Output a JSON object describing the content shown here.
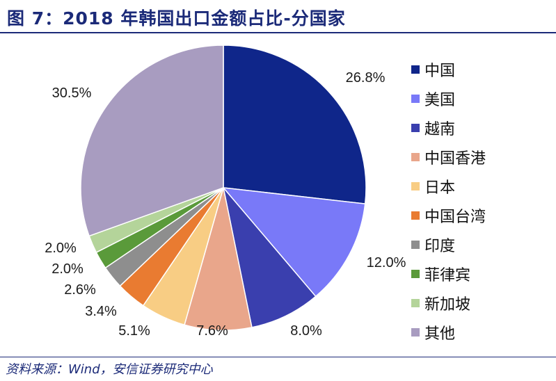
{
  "title": "图 7：2018 年韩国出口金额占比-分国家",
  "source": "资料来源：Wind，安信证券研究中心",
  "chart_data": {
    "type": "pie",
    "title": "图 7：2018 年韩国出口金额占比-分国家",
    "legend_position": "right",
    "slices": [
      {
        "label": "中国",
        "value": 26.8,
        "display": "26.8%",
        "color": "#0f268a"
      },
      {
        "label": "美国",
        "value": 12.0,
        "display": "12.0%",
        "color": "#7979f8"
      },
      {
        "label": "越南",
        "value": 8.0,
        "display": "8.0%",
        "color": "#3a3fae"
      },
      {
        "label": "中国香港",
        "value": 7.6,
        "display": "7.6%",
        "color": "#e9a68b"
      },
      {
        "label": "日本",
        "value": 5.1,
        "display": "5.1%",
        "color": "#f8cd84"
      },
      {
        "label": "中国台湾",
        "value": 3.4,
        "display": "3.4%",
        "color": "#e97b31"
      },
      {
        "label": "印度",
        "value": 2.6,
        "display": "2.6%",
        "color": "#8e8e8e"
      },
      {
        "label": "菲律宾",
        "value": 2.0,
        "display": "2.0%",
        "color": "#5a9a3a"
      },
      {
        "label": "新加坡",
        "value": 2.0,
        "display": "2.0%",
        "color": "#b4d49a"
      },
      {
        "label": "其他",
        "value": 30.5,
        "display": "30.5%",
        "color": "#a89cc0"
      }
    ]
  }
}
